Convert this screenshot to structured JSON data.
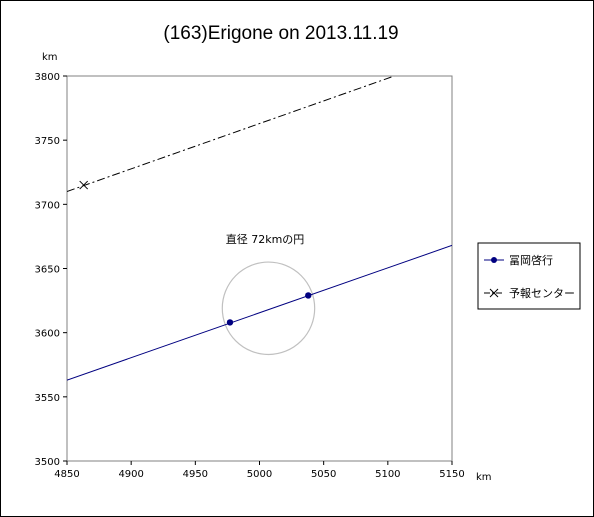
{
  "chart_data": {
    "type": "line",
    "title": "(163)Erigone on 2013.11.19",
    "xlabel": "km",
    "ylabel": "km",
    "xlim": [
      4850,
      5150
    ],
    "ylim": [
      3500,
      3800
    ],
    "xticks": [
      4850,
      4900,
      4950,
      5000,
      5050,
      5100,
      5150
    ],
    "yticks": [
      3500,
      3550,
      3600,
      3650,
      3700,
      3750,
      3800
    ],
    "grid": false,
    "legend_position": "right",
    "series": [
      {
        "name": "冨岡啓行",
        "style": "solid",
        "marker": "circle",
        "color": "#000080",
        "line": [
          [
            4850,
            3563
          ],
          [
            5150,
            3668
          ]
        ],
        "points": [
          [
            4977,
            3608
          ],
          [
            5038,
            3629
          ]
        ]
      },
      {
        "name": "予報センター",
        "style": "dashdot",
        "marker": "x",
        "color": "#000000",
        "line": [
          [
            4850,
            3710
          ],
          [
            5105,
            3800
          ]
        ],
        "points": [
          [
            4863,
            3715
          ]
        ]
      }
    ],
    "circle": {
      "label": "直径 72kmの円",
      "center": [
        5007,
        3619
      ],
      "diameter": 72,
      "color": "#c0c0c0"
    }
  }
}
